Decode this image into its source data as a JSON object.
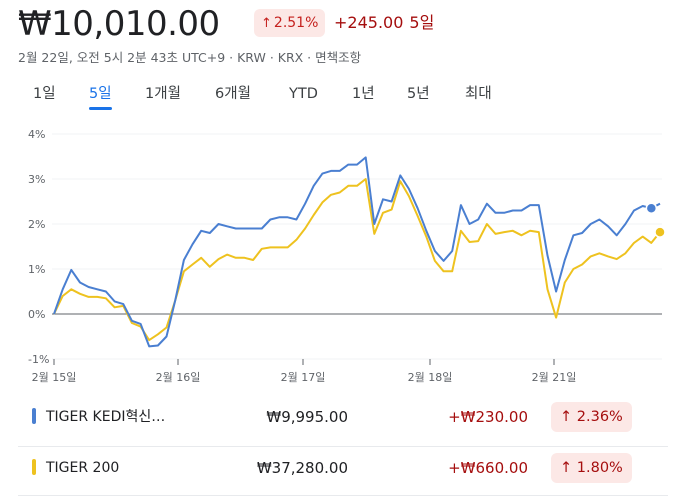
{
  "header": {
    "price": "₩10,010.00",
    "pct_change": "2.51%",
    "abs_change": "+245.00",
    "period": "5일",
    "meta": "2월 22일, 오전 5시 2분 43초 UTC+9 · KRW · KRX · 면책조항"
  },
  "tabs": [
    {
      "label": "1일",
      "active": false
    },
    {
      "label": "5일",
      "active": true
    },
    {
      "label": "1개월",
      "active": false
    },
    {
      "label": "6개월",
      "active": false
    },
    {
      "label": "YTD",
      "active": false
    },
    {
      "label": "1년",
      "active": false
    },
    {
      "label": "5년",
      "active": false
    },
    {
      "label": "최대",
      "active": false
    }
  ],
  "colors": {
    "series1": "#4a7fd1",
    "series2": "#eec21f",
    "up": "#a50e0e",
    "up_bg": "#fce8e6"
  },
  "chart_data": {
    "type": "line",
    "ylim": [
      -1,
      4
    ],
    "yticks": [
      "4%",
      "3%",
      "2%",
      "1%",
      "0%",
      "-1%"
    ],
    "xticks": [
      "2월 15일",
      "2월 16일",
      "2월 17일",
      "2월 18일",
      "2월 21일"
    ],
    "series": [
      {
        "name": "TIGER KEDI혁신…",
        "values": [
          0.0,
          0.55,
          0.98,
          0.7,
          0.6,
          0.55,
          0.5,
          0.28,
          0.22,
          -0.15,
          -0.22,
          -0.72,
          -0.7,
          -0.5,
          0.3,
          1.2,
          1.55,
          1.85,
          1.8,
          2.0,
          1.95,
          1.9,
          1.9,
          1.9,
          1.9,
          2.1,
          2.15,
          2.15,
          2.1,
          2.45,
          2.85,
          3.12,
          3.18,
          3.18,
          3.32,
          3.32,
          3.48,
          2.0,
          2.55,
          2.5,
          3.08,
          2.78,
          2.35,
          1.85,
          1.4,
          1.18,
          1.4,
          2.42,
          2.0,
          2.1,
          2.45,
          2.25,
          2.25,
          2.3,
          2.3,
          2.42,
          2.42,
          1.3,
          0.5,
          1.2,
          1.75,
          1.8,
          2.0,
          2.1,
          1.95,
          1.75,
          2.0,
          2.3,
          2.4,
          2.35,
          2.45
        ]
      },
      {
        "name": "TIGER 200",
        "values": [
          0.0,
          0.4,
          0.55,
          0.45,
          0.38,
          0.38,
          0.35,
          0.15,
          0.18,
          -0.2,
          -0.28,
          -0.58,
          -0.45,
          -0.3,
          0.3,
          0.95,
          1.1,
          1.25,
          1.05,
          1.22,
          1.32,
          1.25,
          1.25,
          1.2,
          1.45,
          1.48,
          1.48,
          1.48,
          1.65,
          1.9,
          2.2,
          2.48,
          2.65,
          2.7,
          2.85,
          2.85,
          3.0,
          1.78,
          2.25,
          2.32,
          2.95,
          2.62,
          2.18,
          1.72,
          1.18,
          0.95,
          0.95,
          1.85,
          1.6,
          1.62,
          2.0,
          1.78,
          1.82,
          1.85,
          1.75,
          1.85,
          1.82,
          0.55,
          -0.08,
          0.7,
          1.0,
          1.1,
          1.28,
          1.35,
          1.28,
          1.22,
          1.35,
          1.58,
          1.72,
          1.58,
          1.82
        ]
      }
    ]
  },
  "rows": [
    {
      "name": "TIGER KEDI혁신…",
      "value": "₩9,995.00",
      "change": "+₩230.00",
      "pct": "2.36%"
    },
    {
      "name": "TIGER 200",
      "value": "₩37,280.00",
      "change": "+₩660.00",
      "pct": "1.80%"
    }
  ]
}
